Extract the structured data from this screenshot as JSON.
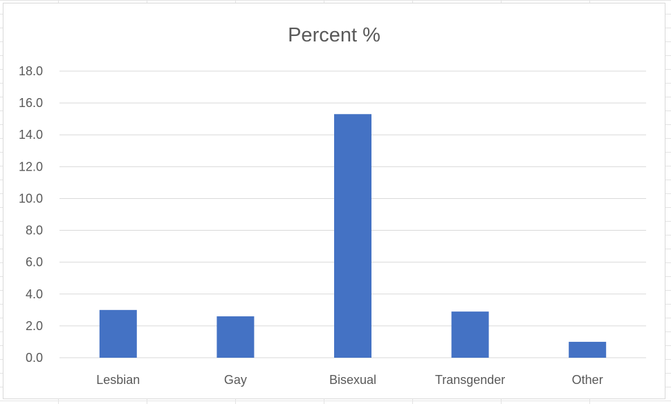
{
  "chart_data": {
    "type": "bar",
    "title": "Percent %",
    "categories": [
      "Lesbian",
      "Gay",
      "Bisexual",
      "Transgender",
      "Other"
    ],
    "values": [
      3.0,
      2.6,
      15.3,
      2.9,
      1.0
    ],
    "ylim": [
      0,
      18
    ],
    "yticks": [
      "0.0",
      "2.0",
      "4.0",
      "6.0",
      "8.0",
      "10.0",
      "12.0",
      "14.0",
      "16.0",
      "18.0"
    ],
    "xlabel": "",
    "ylabel": "",
    "grid": true,
    "legend": "none",
    "bar_color": "#4472C4",
    "gridline_color": "#d9d9d9"
  }
}
